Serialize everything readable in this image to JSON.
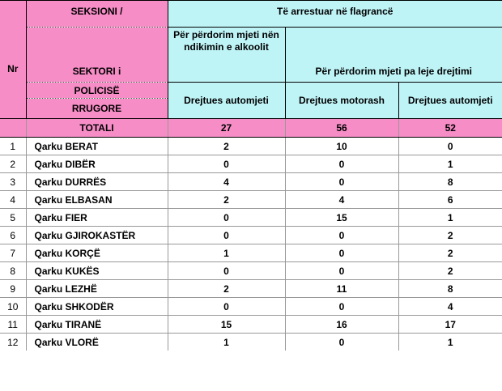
{
  "header": {
    "nr": "Nr",
    "sector_lines": [
      "SEKSIONI /",
      "SEKTORI i",
      "POLICISË",
      "RRUGORE"
    ],
    "arrested": "Të arrestuar në flagrancë",
    "alcohol": "Për përdorim mjeti nën ndikimin e alkoolit",
    "no_license": "Për përdorim mjeti pa leje drejtimi",
    "col_car_a": "Drejtues automjeti",
    "col_moto": "Drejtues motorash",
    "col_car_b": "Drejtues automjeti"
  },
  "totals": {
    "label": "TOTALI",
    "values": [
      "27",
      "56",
      "52"
    ]
  },
  "rows": [
    {
      "nr": "1",
      "name": "Qarku BERAT",
      "values": [
        "2",
        "10",
        "0"
      ]
    },
    {
      "nr": "2",
      "name": "Qarku DIBËR",
      "values": [
        "0",
        "0",
        "1"
      ]
    },
    {
      "nr": "3",
      "name": "Qarku DURRËS",
      "values": [
        "4",
        "0",
        "8"
      ]
    },
    {
      "nr": "4",
      "name": "Qarku ELBASAN",
      "values": [
        "2",
        "4",
        "6"
      ]
    },
    {
      "nr": "5",
      "name": "Qarku FIER",
      "values": [
        "0",
        "15",
        "1"
      ]
    },
    {
      "nr": "6",
      "name": "Qarku GJIROKASTËR",
      "values": [
        "0",
        "0",
        "2"
      ]
    },
    {
      "nr": "7",
      "name": "Qarku KORÇË",
      "values": [
        "1",
        "0",
        "2"
      ]
    },
    {
      "nr": "8",
      "name": "Qarku KUKËS",
      "values": [
        "0",
        "0",
        "2"
      ]
    },
    {
      "nr": "9",
      "name": "Qarku LEZHË",
      "values": [
        "2",
        "11",
        "8"
      ]
    },
    {
      "nr": "10",
      "name": "Qarku SHKODËR",
      "values": [
        "0",
        "0",
        "4"
      ]
    },
    {
      "nr": "11",
      "name": "Qarku TIRANË",
      "values": [
        "15",
        "16",
        "17"
      ]
    },
    {
      "nr": "12",
      "name": "Qarku VLORË",
      "values": [
        "1",
        "0",
        "1"
      ]
    }
  ]
}
